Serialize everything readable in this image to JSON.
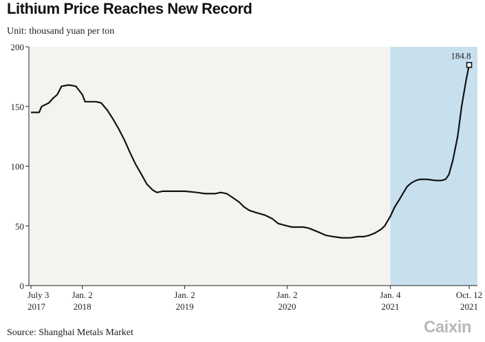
{
  "title": "Lithium Price Reaches New Record",
  "subtitle": "Unit: thousand yuan per ton",
  "source": "Source: Shanghai Metals Market",
  "brand": "Caixin",
  "colors": {
    "plot_background": "#f5f3ef",
    "highlight_background": "#c8e0ee",
    "line": "#111111",
    "axis": "#222222"
  },
  "chart_data": {
    "type": "line",
    "title": "Lithium Price Reaches New Record",
    "ylabel": "Unit: thousand yuan per ton",
    "ylim": [
      0,
      200
    ],
    "xlim": [
      "2017-07-03",
      "2021-10-12"
    ],
    "grid": false,
    "y_ticks": [
      {
        "value": 0,
        "label": "0"
      },
      {
        "value": 50,
        "label": "50"
      },
      {
        "value": 100,
        "label": "100"
      },
      {
        "value": 150,
        "label": "150"
      },
      {
        "value": 200,
        "label": "200"
      }
    ],
    "x_ticks": [
      {
        "date": "2017-07-03",
        "line1": "July 3",
        "line2": "2017",
        "anchor": "start"
      },
      {
        "date": "2018-01-02",
        "line1": "Jan. 2",
        "line2": "2018",
        "anchor": "middle"
      },
      {
        "date": "2019-01-02",
        "line1": "Jan. 2",
        "line2": "2019",
        "anchor": "middle"
      },
      {
        "date": "2020-01-02",
        "line1": "Jan. 2",
        "line2": "2020",
        "anchor": "middle"
      },
      {
        "date": "2021-01-04",
        "line1": "Jan. 4",
        "line2": "2021",
        "anchor": "middle"
      },
      {
        "date": "2021-10-12",
        "line1": "Oct. 12",
        "line2": "2021",
        "anchor": "middle"
      }
    ],
    "highlight_range": [
      "2021-01-04",
      "2021-10-12"
    ],
    "end_annotation": {
      "date": "2021-10-12",
      "value": 184.8,
      "label": "184.8"
    },
    "series": [
      {
        "points": [
          [
            "2017-07-03",
            145
          ],
          [
            "2017-08-01",
            145
          ],
          [
            "2017-08-10",
            150
          ],
          [
            "2017-09-05",
            153
          ],
          [
            "2017-09-20",
            157
          ],
          [
            "2017-10-05",
            160
          ],
          [
            "2017-10-20",
            167
          ],
          [
            "2017-11-15",
            168
          ],
          [
            "2017-12-10",
            167
          ],
          [
            "2017-12-20",
            164
          ],
          [
            "2018-01-02",
            160
          ],
          [
            "2018-01-12",
            154
          ],
          [
            "2018-02-20",
            154
          ],
          [
            "2018-03-10",
            153
          ],
          [
            "2018-04-01",
            147
          ],
          [
            "2018-04-20",
            140
          ],
          [
            "2018-05-10",
            132
          ],
          [
            "2018-06-01",
            122
          ],
          [
            "2018-06-20",
            112
          ],
          [
            "2018-07-10",
            102
          ],
          [
            "2018-08-01",
            93
          ],
          [
            "2018-08-20",
            85
          ],
          [
            "2018-09-10",
            80
          ],
          [
            "2018-09-25",
            78
          ],
          [
            "2018-10-15",
            79
          ],
          [
            "2018-12-01",
            79
          ],
          [
            "2019-01-02",
            79
          ],
          [
            "2019-02-15",
            78
          ],
          [
            "2019-03-15",
            77
          ],
          [
            "2019-04-20",
            77
          ],
          [
            "2019-05-10",
            78
          ],
          [
            "2019-06-01",
            77
          ],
          [
            "2019-06-20",
            74
          ],
          [
            "2019-07-15",
            70
          ],
          [
            "2019-08-01",
            66
          ],
          [
            "2019-08-20",
            63
          ],
          [
            "2019-09-15",
            61
          ],
          [
            "2019-10-15",
            59
          ],
          [
            "2019-11-10",
            56
          ],
          [
            "2019-12-01",
            52
          ],
          [
            "2020-01-02",
            50
          ],
          [
            "2020-01-20",
            49
          ],
          [
            "2020-03-01",
            49
          ],
          [
            "2020-03-20",
            48
          ],
          [
            "2020-04-10",
            46
          ],
          [
            "2020-05-01",
            44
          ],
          [
            "2020-05-20",
            42
          ],
          [
            "2020-06-15",
            41
          ],
          [
            "2020-07-15",
            40
          ],
          [
            "2020-08-15",
            40
          ],
          [
            "2020-09-10",
            41
          ],
          [
            "2020-10-01",
            41
          ],
          [
            "2020-10-20",
            42
          ],
          [
            "2020-11-10",
            44
          ],
          [
            "2020-12-01",
            47
          ],
          [
            "2020-12-15",
            50
          ],
          [
            "2021-01-04",
            58
          ],
          [
            "2021-01-20",
            66
          ],
          [
            "2021-02-05",
            72
          ],
          [
            "2021-02-20",
            78
          ],
          [
            "2021-03-05",
            83
          ],
          [
            "2021-03-20",
            86
          ],
          [
            "2021-04-05",
            88
          ],
          [
            "2021-04-20",
            89
          ],
          [
            "2021-05-15",
            89
          ],
          [
            "2021-06-15",
            88
          ],
          [
            "2021-07-05",
            88
          ],
          [
            "2021-07-20",
            89
          ],
          [
            "2021-08-01",
            93
          ],
          [
            "2021-08-15",
            105
          ],
          [
            "2021-09-01",
            125
          ],
          [
            "2021-09-15",
            150
          ],
          [
            "2021-10-01",
            172
          ],
          [
            "2021-10-12",
            184.8
          ]
        ]
      }
    ]
  }
}
